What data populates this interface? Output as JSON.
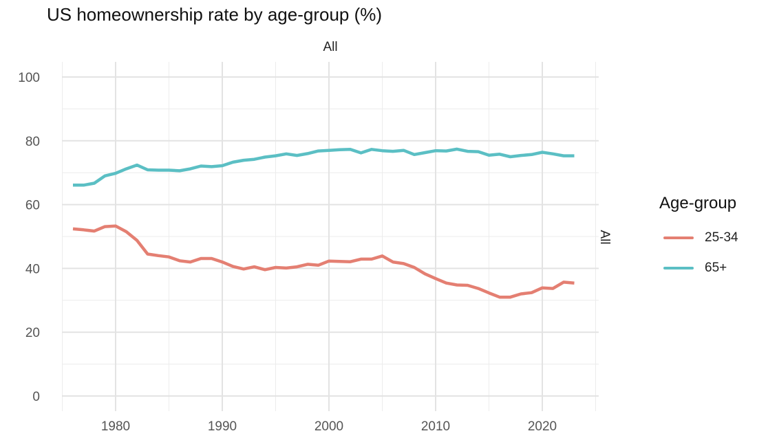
{
  "chart_data": {
    "type": "line",
    "title": "US homeownership rate by age-group (%)",
    "facet_top_label": "All",
    "facet_right_label": "All",
    "xlabel": "",
    "ylabel": "",
    "xlim": [
      1975,
      2025
    ],
    "ylim": [
      0,
      100
    ],
    "x_ticks": [
      1980,
      1990,
      2000,
      2010,
      2020
    ],
    "y_ticks": [
      0,
      20,
      40,
      60,
      80,
      100
    ],
    "legend": {
      "title": "Age-group",
      "position": "right"
    },
    "x": [
      1976,
      1977,
      1978,
      1979,
      1980,
      1981,
      1982,
      1983,
      1984,
      1985,
      1986,
      1987,
      1988,
      1989,
      1990,
      1991,
      1992,
      1993,
      1994,
      1995,
      1996,
      1997,
      1998,
      1999,
      2000,
      2001,
      2002,
      2003,
      2004,
      2005,
      2006,
      2007,
      2008,
      2009,
      2010,
      2011,
      2012,
      2013,
      2014,
      2015,
      2016,
      2017,
      2018,
      2019,
      2020,
      2021,
      2022,
      2023
    ],
    "series": [
      {
        "name": "25-34",
        "color": "#E47F72",
        "values": [
          52.4,
          52.1,
          51.7,
          53.1,
          53.3,
          51.5,
          48.8,
          44.5,
          44.0,
          43.6,
          42.4,
          42.0,
          43.1,
          43.1,
          42.0,
          40.6,
          39.8,
          40.5,
          39.6,
          40.3,
          40.1,
          40.5,
          41.3,
          41.0,
          42.3,
          42.2,
          42.1,
          42.9,
          42.9,
          43.9,
          42.0,
          41.5,
          40.3,
          38.3,
          36.8,
          35.4,
          34.8,
          34.7,
          33.7,
          32.3,
          31.0,
          31.0,
          32.0,
          32.4,
          33.9,
          33.7,
          35.7,
          35.4
        ]
      },
      {
        "name": "65+",
        "color": "#5BBFC4",
        "values": [
          66.1,
          66.1,
          66.7,
          69.0,
          69.8,
          71.2,
          72.4,
          70.9,
          70.8,
          70.8,
          70.6,
          71.2,
          72.1,
          71.9,
          72.2,
          73.3,
          73.9,
          74.2,
          74.9,
          75.3,
          75.9,
          75.4,
          76.0,
          76.8,
          77.0,
          77.2,
          77.3,
          76.2,
          77.3,
          76.9,
          76.7,
          77.0,
          75.7,
          76.3,
          76.9,
          76.8,
          77.4,
          76.7,
          76.6,
          75.5,
          75.8,
          75.0,
          75.4,
          75.7,
          76.4,
          75.9,
          75.3,
          75.3
        ]
      }
    ]
  }
}
